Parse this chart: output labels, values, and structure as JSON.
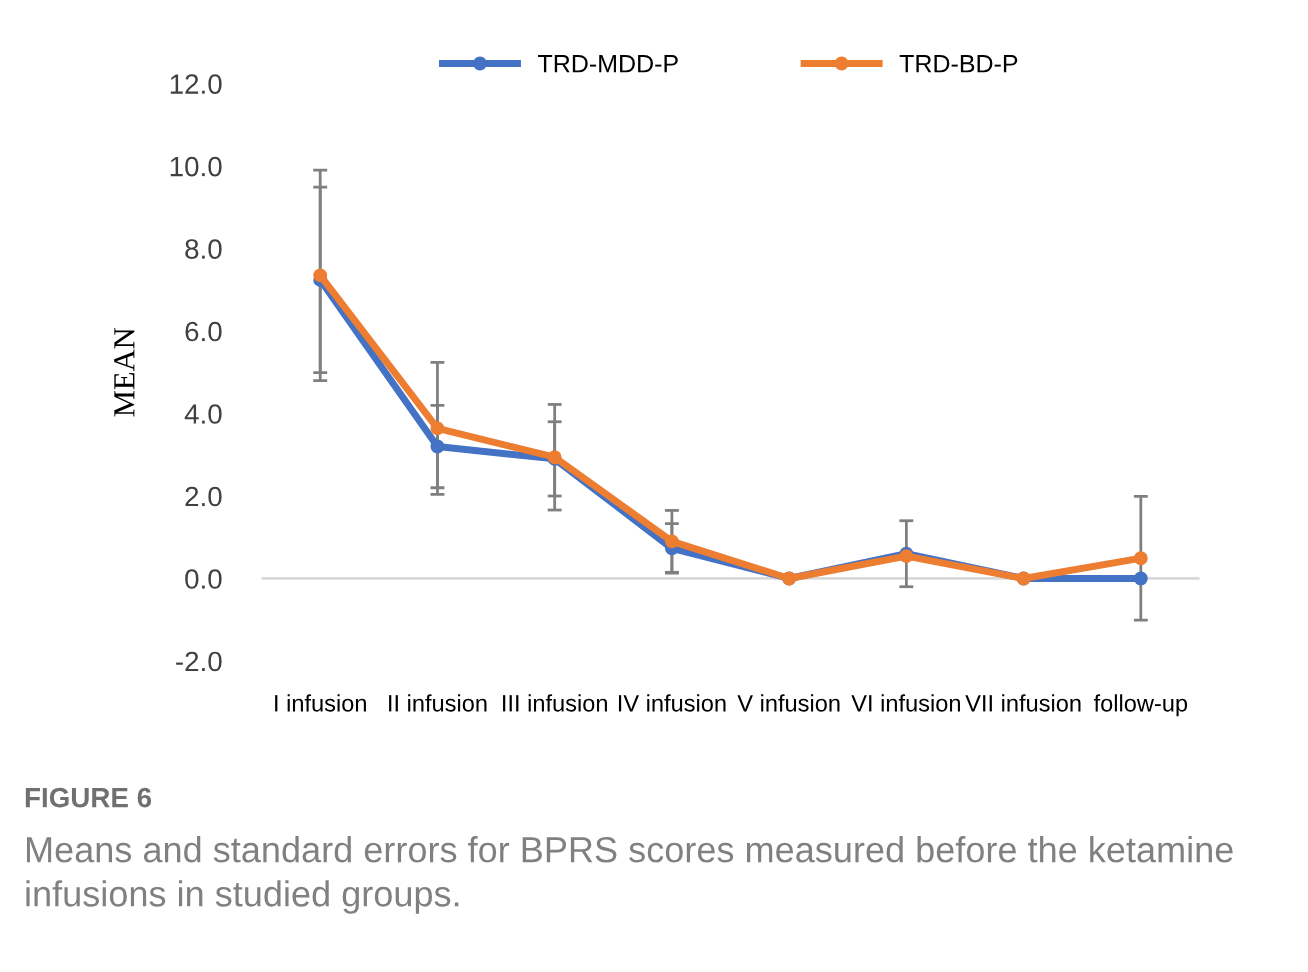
{
  "chart_data": {
    "type": "line",
    "ylabel": "MEAN",
    "categories": [
      "I infusion",
      "II infusion",
      "III infusion",
      "IV infusion",
      "V infusion",
      "VI infusion",
      "VII infusion",
      "follow-up"
    ],
    "series": [
      {
        "name": "TRD-MDD-P",
        "color": "#4472c4",
        "values": [
          7.24,
          3.2,
          2.9,
          0.73,
          0,
          0.6,
          0,
          0
        ],
        "errors": [
          2.25,
          1.0,
          0.9,
          0.6,
          null,
          0.8,
          null,
          null
        ]
      },
      {
        "name": "TRD-BD-P",
        "color": "#ed7d31",
        "values": [
          7.35,
          3.64,
          2.94,
          0.9,
          0,
          0.54,
          0,
          0.49
        ],
        "errors": [
          2.55,
          1.6,
          1.28,
          0.75,
          null,
          null,
          null,
          1.5
        ]
      }
    ],
    "ylim": [
      -2,
      12
    ],
    "yticks": [
      {
        "value": -2,
        "label": "-2.0"
      },
      {
        "value": 0,
        "label": "0.0"
      },
      {
        "value": 2,
        "label": "2.0"
      },
      {
        "value": 4,
        "label": "4.0"
      },
      {
        "value": 6,
        "label": "6.0"
      },
      {
        "value": 8,
        "label": "8.0"
      },
      {
        "value": 10,
        "label": "10.0"
      },
      {
        "value": 12,
        "label": "12.0"
      }
    ],
    "ref_lines": [
      {
        "axis": "y",
        "value": 0,
        "color": "#d9d9d9"
      }
    ],
    "marker": "circle",
    "grid": false,
    "legend": "top",
    "annotations": [
      "FIGURE 6",
      "Means and standard errors for BPRS scores measured before the ketamine infusions in studied groups."
    ]
  }
}
